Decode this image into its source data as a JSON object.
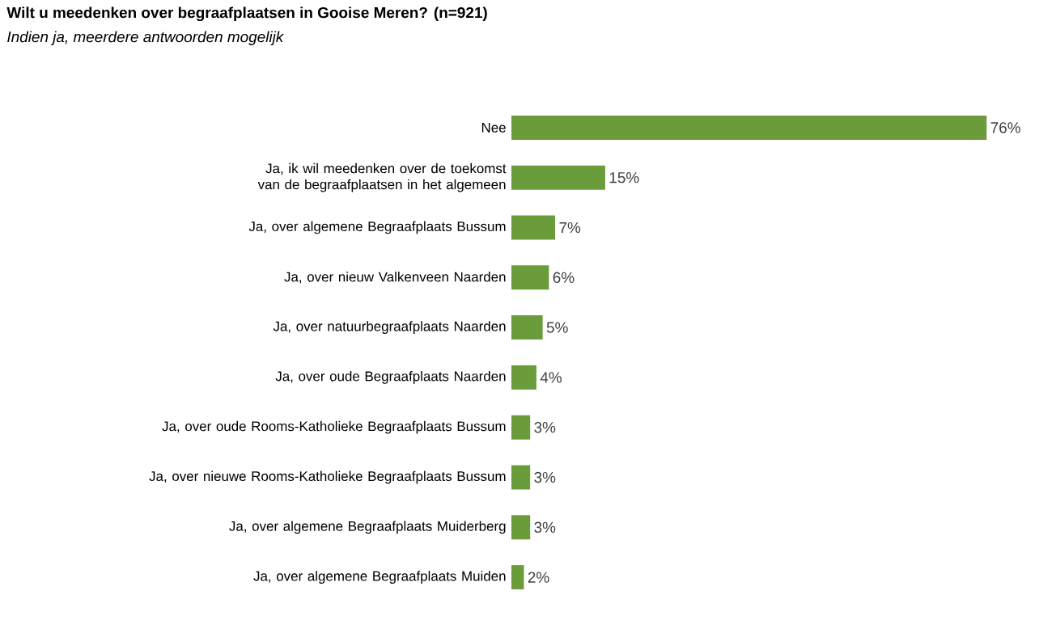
{
  "chart_data": {
    "type": "bar",
    "orientation": "horizontal",
    "title": "Wilt u meedenken over begraafplaatsen in Gooise Meren? (n=921)",
    "subtitle": "Indien ja, meerdere antwoorden mogelijk",
    "categories": [
      "Nee",
      "Ja, ik wil meedenken over de toekomst van de begraafplaatsen in het algemeen",
      "Ja, over algemene Begraafplaats Bussum",
      "Ja, over nieuw Valkenveen Naarden",
      "Ja, over natuurbegraafplaats Naarden",
      "Ja, over oude Begraafplaats Naarden",
      "Ja, over oude Rooms-Katholieke Begraafplaats Bussum",
      "Ja, over nieuwe Rooms-Katholieke Begraafplaats Bussum",
      "Ja, over algemene Begraafplaats Muiderberg",
      "Ja, over algemene Begraafplaats Muiden"
    ],
    "values": [
      76,
      15,
      7,
      6,
      5,
      4,
      3,
      3,
      3,
      2
    ],
    "value_labels": [
      "76%",
      "15%",
      "7%",
      "6%",
      "5%",
      "4%",
      "3%",
      "3%",
      "3%",
      "2%"
    ],
    "color": "#6a9c3c"
  }
}
